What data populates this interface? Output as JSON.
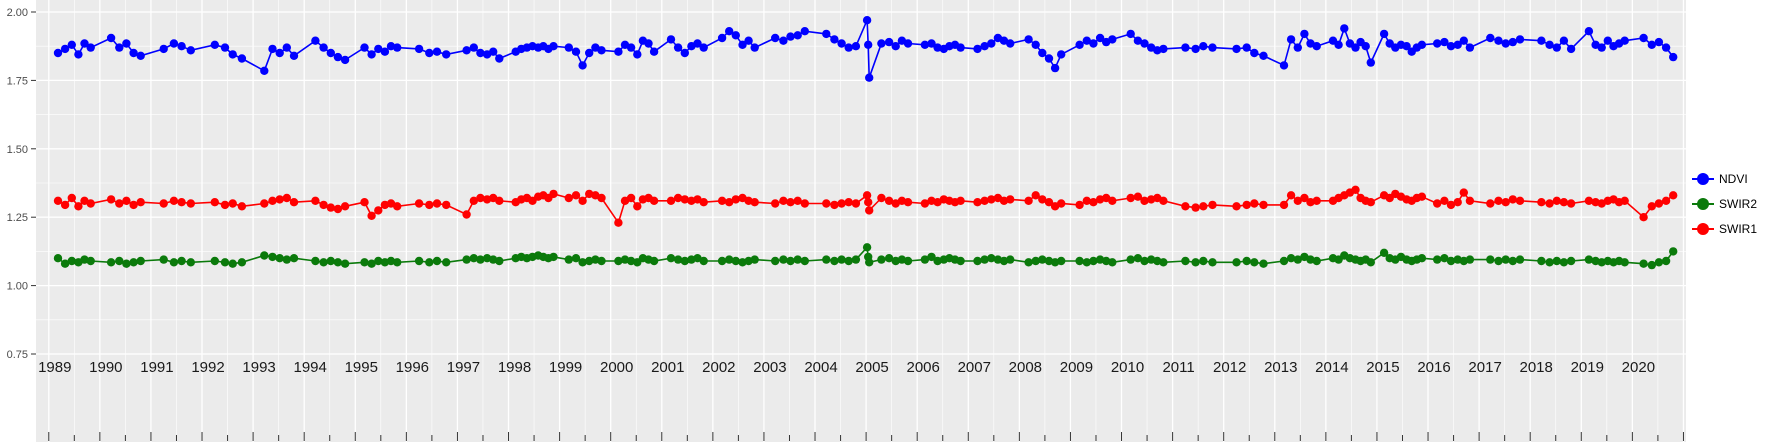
{
  "figure": {
    "bg": "#ffffff",
    "panel_bg": "#ebebeb",
    "grid_color": "#ffffff",
    "tick_color": "#333333",
    "y_label_color": "#4d4d4d",
    "x_label_color": "#1a1a1a"
  },
  "chart_data": {
    "type": "line",
    "title": "",
    "xlabel": "",
    "ylabel": "",
    "legend_position": "right",
    "grid": true,
    "xlim": [
      1988.75,
      2021.05
    ],
    "ylim": [
      0.75,
      2.0
    ],
    "y_ticks": [
      2.0,
      1.75,
      1.5,
      1.25,
      1.0,
      0.75
    ],
    "y_tick_labels": [
      "2.00",
      "1.75",
      "1.50",
      "1.25",
      "1.00",
      "0.75"
    ],
    "x_ticks_years": [
      1989,
      1990,
      1991,
      1992,
      1993,
      1994,
      1995,
      1996,
      1997,
      1998,
      1999,
      2000,
      2001,
      2002,
      2003,
      2004,
      2005,
      2006,
      2007,
      2008,
      2009,
      2010,
      2011,
      2012,
      2013,
      2014,
      2015,
      2016,
      2017,
      2018,
      2019,
      2020
    ],
    "x": [
      1989.18,
      1989.32,
      1989.45,
      1989.58,
      1989.7,
      1989.82,
      1990.22,
      1990.38,
      1990.52,
      1990.66,
      1990.8,
      1991.25,
      1991.45,
      1991.6,
      1991.78,
      1992.25,
      1992.45,
      1992.6,
      1992.78,
      1993.22,
      1993.38,
      1993.52,
      1993.66,
      1993.8,
      1994.22,
      1994.38,
      1994.52,
      1994.66,
      1994.8,
      1995.18,
      1995.32,
      1995.45,
      1995.58,
      1995.7,
      1995.82,
      1996.25,
      1996.45,
      1996.6,
      1996.78,
      1997.18,
      1997.32,
      1997.45,
      1997.58,
      1997.7,
      1997.82,
      1998.14,
      1998.25,
      1998.36,
      1998.47,
      1998.58,
      1998.68,
      1998.78,
      1998.88,
      1999.18,
      1999.32,
      1999.45,
      1999.58,
      1999.7,
      1999.82,
      2000.15,
      2000.28,
      2000.4,
      2000.52,
      2000.63,
      2000.74,
      2000.85,
      2001.18,
      2001.32,
      2001.45,
      2001.58,
      2001.7,
      2001.82,
      2002.18,
      2002.32,
      2002.45,
      2002.58,
      2002.7,
      2002.82,
      2003.22,
      2003.38,
      2003.52,
      2003.66,
      2003.8,
      2004.22,
      2004.38,
      2004.52,
      2004.66,
      2004.8,
      2005.02,
      2005.04,
      2005.06,
      2005.3,
      2005.45,
      2005.58,
      2005.7,
      2005.82,
      2006.15,
      2006.28,
      2006.4,
      2006.52,
      2006.63,
      2006.74,
      2006.85,
      2007.18,
      2007.32,
      2007.45,
      2007.58,
      2007.7,
      2007.82,
      2008.18,
      2008.32,
      2008.45,
      2008.58,
      2008.7,
      2008.82,
      2009.18,
      2009.32,
      2009.45,
      2009.58,
      2009.7,
      2009.82,
      2010.18,
      2010.32,
      2010.45,
      2010.58,
      2010.7,
      2010.82,
      2011.25,
      2011.45,
      2011.6,
      2011.78,
      2012.25,
      2012.45,
      2012.6,
      2012.78,
      2013.18,
      2013.32,
      2013.45,
      2013.58,
      2013.7,
      2013.82,
      2014.14,
      2014.25,
      2014.36,
      2014.47,
      2014.58,
      2014.68,
      2014.78,
      2014.88,
      2015.14,
      2015.25,
      2015.36,
      2015.47,
      2015.58,
      2015.68,
      2015.78,
      2015.88,
      2016.18,
      2016.32,
      2016.45,
      2016.58,
      2016.7,
      2016.82,
      2017.22,
      2017.38,
      2017.52,
      2017.66,
      2017.8,
      2018.22,
      2018.38,
      2018.52,
      2018.66,
      2018.8,
      2019.15,
      2019.28,
      2019.4,
      2019.52,
      2019.63,
      2019.74,
      2019.85,
      2020.22,
      2020.38,
      2020.52,
      2020.66,
      2020.8
    ],
    "series": [
      {
        "name": "NDVI",
        "color": "#0000ff",
        "values": [
          1.85,
          1.865,
          1.88,
          1.845,
          1.885,
          1.87,
          1.905,
          1.87,
          1.885,
          1.85,
          1.84,
          1.865,
          1.885,
          1.875,
          1.86,
          1.88,
          1.87,
          1.845,
          1.83,
          1.785,
          1.865,
          1.85,
          1.87,
          1.84,
          1.895,
          1.87,
          1.85,
          1.835,
          1.825,
          1.87,
          1.845,
          1.865,
          1.855,
          1.875,
          1.87,
          1.865,
          1.85,
          1.855,
          1.845,
          1.86,
          1.87,
          1.85,
          1.845,
          1.855,
          1.83,
          1.855,
          1.865,
          1.87,
          1.875,
          1.87,
          1.875,
          1.865,
          1.875,
          1.87,
          1.855,
          1.805,
          1.85,
          1.87,
          1.86,
          1.855,
          1.88,
          1.87,
          1.845,
          1.895,
          1.885,
          1.855,
          1.9,
          1.87,
          1.85,
          1.875,
          1.885,
          1.87,
          1.905,
          1.93,
          1.915,
          1.88,
          1.895,
          1.87,
          1.905,
          1.895,
          1.91,
          1.915,
          1.93,
          1.92,
          1.9,
          1.885,
          1.87,
          1.875,
          1.97,
          1.88,
          1.76,
          1.885,
          1.89,
          1.875,
          1.895,
          1.885,
          1.88,
          1.885,
          1.87,
          1.865,
          1.875,
          1.88,
          1.87,
          1.865,
          1.875,
          1.885,
          1.905,
          1.895,
          1.885,
          1.9,
          1.88,
          1.85,
          1.83,
          1.795,
          1.845,
          1.88,
          1.895,
          1.885,
          1.905,
          1.89,
          1.9,
          1.92,
          1.895,
          1.885,
          1.87,
          1.86,
          1.865,
          1.87,
          1.865,
          1.875,
          1.87,
          1.865,
          1.87,
          1.85,
          1.84,
          1.805,
          1.9,
          1.87,
          1.92,
          1.885,
          1.875,
          1.895,
          1.88,
          1.94,
          1.885,
          1.87,
          1.89,
          1.875,
          1.815,
          1.92,
          1.885,
          1.87,
          1.88,
          1.875,
          1.855,
          1.87,
          1.88,
          1.885,
          1.89,
          1.875,
          1.88,
          1.895,
          1.87,
          1.905,
          1.895,
          1.885,
          1.89,
          1.9,
          1.895,
          1.88,
          1.87,
          1.895,
          1.865,
          1.93,
          1.88,
          1.87,
          1.895,
          1.875,
          1.885,
          1.895,
          1.905,
          1.88,
          1.89,
          1.87,
          1.835
        ]
      },
      {
        "name": "SWIR2",
        "color": "#0b7a0b",
        "values": [
          1.1,
          1.08,
          1.09,
          1.085,
          1.095,
          1.09,
          1.085,
          1.09,
          1.08,
          1.085,
          1.09,
          1.095,
          1.085,
          1.09,
          1.085,
          1.09,
          1.085,
          1.08,
          1.085,
          1.11,
          1.105,
          1.1,
          1.095,
          1.1,
          1.09,
          1.085,
          1.09,
          1.085,
          1.08,
          1.085,
          1.08,
          1.09,
          1.085,
          1.09,
          1.085,
          1.09,
          1.085,
          1.09,
          1.085,
          1.095,
          1.1,
          1.095,
          1.1,
          1.095,
          1.09,
          1.1,
          1.105,
          1.1,
          1.105,
          1.11,
          1.105,
          1.1,
          1.105,
          1.095,
          1.1,
          1.085,
          1.09,
          1.095,
          1.09,
          1.09,
          1.095,
          1.09,
          1.085,
          1.1,
          1.095,
          1.09,
          1.1,
          1.095,
          1.09,
          1.095,
          1.1,
          1.09,
          1.09,
          1.095,
          1.09,
          1.085,
          1.09,
          1.095,
          1.09,
          1.095,
          1.09,
          1.095,
          1.09,
          1.095,
          1.09,
          1.095,
          1.09,
          1.095,
          1.14,
          1.105,
          1.085,
          1.095,
          1.1,
          1.09,
          1.095,
          1.09,
          1.095,
          1.105,
          1.09,
          1.095,
          1.1,
          1.095,
          1.09,
          1.09,
          1.095,
          1.1,
          1.095,
          1.09,
          1.095,
          1.085,
          1.09,
          1.095,
          1.09,
          1.085,
          1.09,
          1.09,
          1.085,
          1.09,
          1.095,
          1.09,
          1.085,
          1.095,
          1.1,
          1.09,
          1.095,
          1.09,
          1.085,
          1.09,
          1.085,
          1.09,
          1.085,
          1.085,
          1.09,
          1.085,
          1.08,
          1.09,
          1.1,
          1.095,
          1.105,
          1.095,
          1.09,
          1.1,
          1.095,
          1.11,
          1.1,
          1.095,
          1.09,
          1.095,
          1.085,
          1.12,
          1.1,
          1.095,
          1.105,
          1.095,
          1.09,
          1.095,
          1.1,
          1.095,
          1.1,
          1.09,
          1.095,
          1.09,
          1.095,
          1.095,
          1.09,
          1.095,
          1.09,
          1.095,
          1.09,
          1.085,
          1.09,
          1.085,
          1.09,
          1.095,
          1.09,
          1.085,
          1.09,
          1.085,
          1.09,
          1.085,
          1.08,
          1.075,
          1.085,
          1.09,
          1.125
        ]
      },
      {
        "name": "SWIR1",
        "color": "#ff0000",
        "values": [
          1.31,
          1.295,
          1.32,
          1.29,
          1.31,
          1.3,
          1.315,
          1.3,
          1.31,
          1.295,
          1.305,
          1.3,
          1.31,
          1.305,
          1.3,
          1.305,
          1.295,
          1.3,
          1.29,
          1.3,
          1.31,
          1.315,
          1.32,
          1.305,
          1.31,
          1.295,
          1.285,
          1.28,
          1.29,
          1.305,
          1.255,
          1.275,
          1.295,
          1.3,
          1.29,
          1.3,
          1.295,
          1.3,
          1.295,
          1.26,
          1.31,
          1.32,
          1.315,
          1.32,
          1.31,
          1.305,
          1.315,
          1.32,
          1.31,
          1.325,
          1.33,
          1.32,
          1.335,
          1.32,
          1.33,
          1.31,
          1.335,
          1.33,
          1.32,
          1.23,
          1.31,
          1.32,
          1.29,
          1.315,
          1.32,
          1.31,
          1.31,
          1.32,
          1.315,
          1.31,
          1.315,
          1.305,
          1.31,
          1.305,
          1.315,
          1.32,
          1.31,
          1.305,
          1.3,
          1.31,
          1.305,
          1.31,
          1.3,
          1.3,
          1.295,
          1.3,
          1.305,
          1.3,
          1.33,
          1.305,
          1.275,
          1.32,
          1.31,
          1.3,
          1.31,
          1.305,
          1.3,
          1.31,
          1.305,
          1.315,
          1.31,
          1.305,
          1.31,
          1.305,
          1.31,
          1.315,
          1.32,
          1.31,
          1.315,
          1.31,
          1.33,
          1.315,
          1.305,
          1.29,
          1.3,
          1.295,
          1.31,
          1.305,
          1.315,
          1.32,
          1.31,
          1.32,
          1.325,
          1.31,
          1.315,
          1.32,
          1.31,
          1.29,
          1.285,
          1.29,
          1.295,
          1.29,
          1.295,
          1.3,
          1.295,
          1.295,
          1.33,
          1.31,
          1.32,
          1.305,
          1.31,
          1.31,
          1.32,
          1.33,
          1.34,
          1.35,
          1.32,
          1.31,
          1.305,
          1.33,
          1.32,
          1.335,
          1.325,
          1.315,
          1.31,
          1.32,
          1.325,
          1.3,
          1.31,
          1.295,
          1.305,
          1.34,
          1.31,
          1.3,
          1.31,
          1.305,
          1.315,
          1.31,
          1.305,
          1.3,
          1.31,
          1.305,
          1.3,
          1.31,
          1.305,
          1.3,
          1.31,
          1.315,
          1.305,
          1.31,
          1.25,
          1.29,
          1.3,
          1.31,
          1.33
        ]
      }
    ],
    "legend_entries": [
      "NDVI",
      "SWIR2",
      "SWIR1"
    ]
  }
}
